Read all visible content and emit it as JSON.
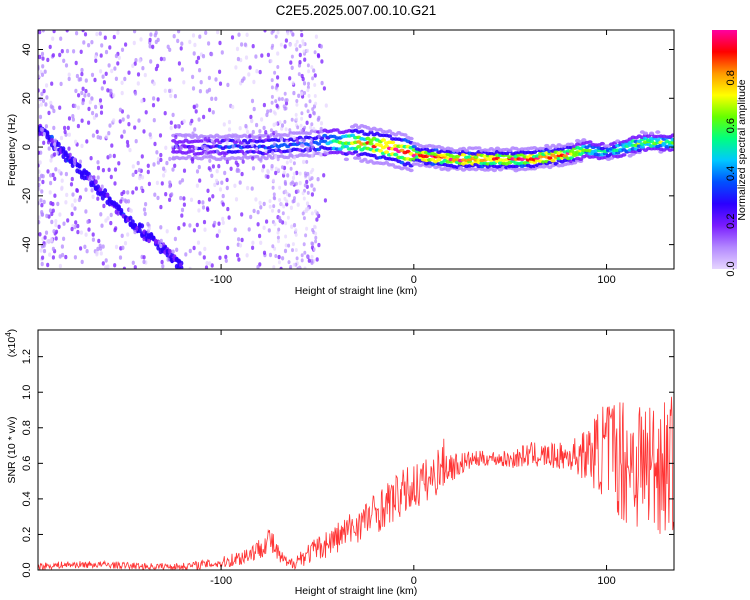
{
  "title": "C2E5.2025.007.00.10.G21",
  "chart_data": [
    {
      "type": "heatmap",
      "xlabel": "Height of straight line (km)",
      "ylabel": "Frequency (Hz)",
      "xlim": [
        -195,
        135
      ],
      "ylim": [
        -50,
        48
      ],
      "xticks": [
        -100,
        0,
        100
      ],
      "yticks": [
        -40,
        -20,
        0,
        20,
        40
      ],
      "xtick_labels": [
        "-100",
        "0",
        "100"
      ],
      "ytick_labels": [
        "-40",
        "-20",
        "0",
        "20",
        "40"
      ],
      "colorbar": {
        "label": "Normalized spectral amplitude",
        "range": [
          0.0,
          1.0
        ],
        "ticks": [
          0.0,
          0.2,
          0.4,
          0.6,
          0.8
        ],
        "tick_labels": [
          "0.0",
          "0.2",
          "0.4",
          "0.6",
          "0.8"
        ],
        "colors": [
          "#e6d6ff",
          "#b388ff",
          "#7a1cff",
          "#2b00ff",
          "#0050ff",
          "#00c8ff",
          "#00ff80",
          "#66ff00",
          "#ffff00",
          "#ff9900",
          "#ff0000",
          "#ff00a0"
        ]
      },
      "ridge": {
        "x": [
          -125,
          -100,
          -80,
          -60,
          -45,
          -30,
          -15,
          0,
          10,
          20,
          35,
          50,
          60,
          70,
          80,
          90,
          100,
          110,
          120,
          135
        ],
        "y": [
          0,
          0,
          0,
          1,
          2,
          2,
          0,
          -3,
          -4,
          -5,
          -5,
          -5,
          -5,
          -4,
          -3,
          -1,
          -2,
          0,
          2,
          2
        ],
        "peak_amplitude": [
          0.25,
          0.3,
          0.35,
          0.35,
          0.45,
          0.8,
          0.95,
          0.95,
          0.95,
          0.95,
          0.95,
          0.9,
          0.95,
          0.95,
          0.9,
          0.6,
          0.5,
          0.6,
          0.7,
          0.6
        ]
      },
      "diagonal_feature": {
        "x": [
          -195,
          -170,
          -150,
          -130,
          -120
        ],
        "y": [
          8,
          -12,
          -28,
          -42,
          -50
        ]
      }
    },
    {
      "type": "line",
      "xlabel": "Height of straight line (km)",
      "ylabel": "SNR (10 * v/v)",
      "yscale_label": "(x10",
      "yscale_exp": "4",
      "yscale_close": ")",
      "xlim": [
        -195,
        135
      ],
      "ylim": [
        0.0,
        1.35
      ],
      "xticks": [
        -100,
        0,
        100
      ],
      "yticks": [
        0.0,
        0.2,
        0.4,
        0.6,
        0.8,
        1.0,
        1.2
      ],
      "xtick_labels": [
        "-100",
        "0",
        "100"
      ],
      "ytick_labels": [
        "0.0",
        "0.2",
        "0.4",
        "0.6",
        "0.8",
        "1.0",
        "1.2"
      ],
      "color": "#ff3333",
      "series": [
        {
          "x": [
            -195,
            -180,
            -160,
            -140,
            -120,
            -100,
            -90,
            -80,
            -75,
            -70,
            -65,
            -60,
            -50,
            -40,
            -30,
            -20,
            -10,
            0,
            10,
            15,
            20,
            30,
            40,
            50,
            60,
            70,
            80,
            90,
            100,
            110,
            120,
            135
          ],
          "y": [
            0.02,
            0.03,
            0.03,
            0.02,
            0.02,
            0.04,
            0.07,
            0.12,
            0.18,
            0.08,
            0.03,
            0.06,
            0.12,
            0.18,
            0.25,
            0.32,
            0.4,
            0.47,
            0.52,
            0.6,
            0.58,
            0.62,
            0.63,
            0.62,
            0.65,
            0.64,
            0.64,
            0.65,
            0.68,
            0.62,
            0.6,
            0.6
          ],
          "noise": [
            0.02,
            0.02,
            0.02,
            0.02,
            0.02,
            0.03,
            0.05,
            0.06,
            0.08,
            0.05,
            0.03,
            0.05,
            0.07,
            0.09,
            0.1,
            0.12,
            0.13,
            0.14,
            0.12,
            0.15,
            0.08,
            0.05,
            0.04,
            0.05,
            0.07,
            0.07,
            0.08,
            0.15,
            0.3,
            0.38,
            0.4,
            0.4
          ]
        }
      ]
    }
  ]
}
